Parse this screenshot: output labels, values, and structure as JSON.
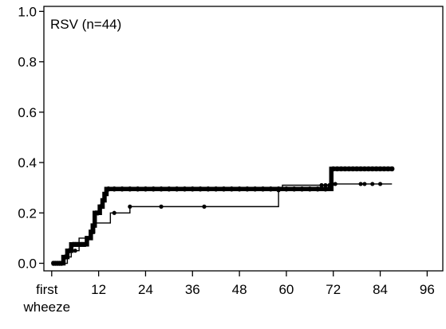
{
  "chart_data": {
    "type": "line",
    "annotation": "RSV (n=44)",
    "xlim": [
      -2,
      100
    ],
    "ylim": [
      -0.03,
      1.02
    ],
    "x_ticks": [
      {
        "value": 0,
        "label": "first\nwheeze"
      },
      {
        "value": 12,
        "label": "12"
      },
      {
        "value": 24,
        "label": "24"
      },
      {
        "value": 36,
        "label": "36"
      },
      {
        "value": 48,
        "label": "48"
      },
      {
        "value": 60,
        "label": "60"
      },
      {
        "value": 72,
        "label": "72"
      },
      {
        "value": 84,
        "label": "84"
      },
      {
        "value": 96,
        "label": "96"
      }
    ],
    "y_ticks": [
      {
        "value": 0.0,
        "label": "0.0"
      },
      {
        "value": 0.2,
        "label": "0.2"
      },
      {
        "value": 0.4,
        "label": "0.4"
      },
      {
        "value": 0.6,
        "label": "0.6"
      },
      {
        "value": 0.8,
        "label": "0.8"
      },
      {
        "value": 1.0,
        "label": "1.0"
      }
    ],
    "grid": false,
    "series": [
      {
        "style": "thick",
        "steps": [
          [
            0,
            0
          ],
          [
            3,
            0.025
          ],
          [
            4,
            0.05
          ],
          [
            5,
            0.075
          ],
          [
            9,
            0.1
          ],
          [
            10,
            0.125
          ],
          [
            10.5,
            0.15
          ],
          [
            11,
            0.2
          ],
          [
            12.3,
            0.225
          ],
          [
            13,
            0.25
          ],
          [
            13.5,
            0.275
          ],
          [
            14,
            0.295
          ],
          [
            71,
            0.295
          ],
          [
            71.5,
            0.375
          ],
          [
            87,
            0.375
          ]
        ],
        "censor_marks": [
          0.5,
          1,
          1.5,
          2,
          2.5,
          3.5,
          4.5,
          5.5,
          6,
          6.5,
          7,
          7.5,
          8,
          8.5,
          10.3,
          11.3,
          11.8,
          12.6,
          14.5,
          16,
          18,
          20,
          22,
          24,
          26,
          28,
          30,
          32,
          34,
          36,
          38,
          40,
          42,
          44,
          46,
          48,
          50,
          52,
          54,
          56,
          58,
          60,
          62,
          64,
          66,
          68,
          70,
          72,
          73,
          74,
          75,
          76,
          77,
          78,
          79,
          80,
          81,
          82,
          83,
          84,
          85,
          86,
          87
        ]
      },
      {
        "style": "thin",
        "steps": [
          [
            0,
            0
          ],
          [
            4,
            0.025
          ],
          [
            5,
            0.05
          ],
          [
            7,
            0.1
          ],
          [
            10,
            0.12
          ],
          [
            11,
            0.16
          ],
          [
            15,
            0.2
          ],
          [
            20,
            0.225
          ],
          [
            58,
            0.29
          ],
          [
            59,
            0.31
          ],
          [
            72,
            0.315
          ],
          [
            87,
            0.315
          ]
        ],
        "censor_marks": [
          1,
          2,
          3,
          6,
          9,
          16,
          20,
          28,
          39,
          58,
          69,
          70,
          71,
          71.5,
          72.5,
          79,
          80,
          82,
          84
        ]
      }
    ]
  }
}
